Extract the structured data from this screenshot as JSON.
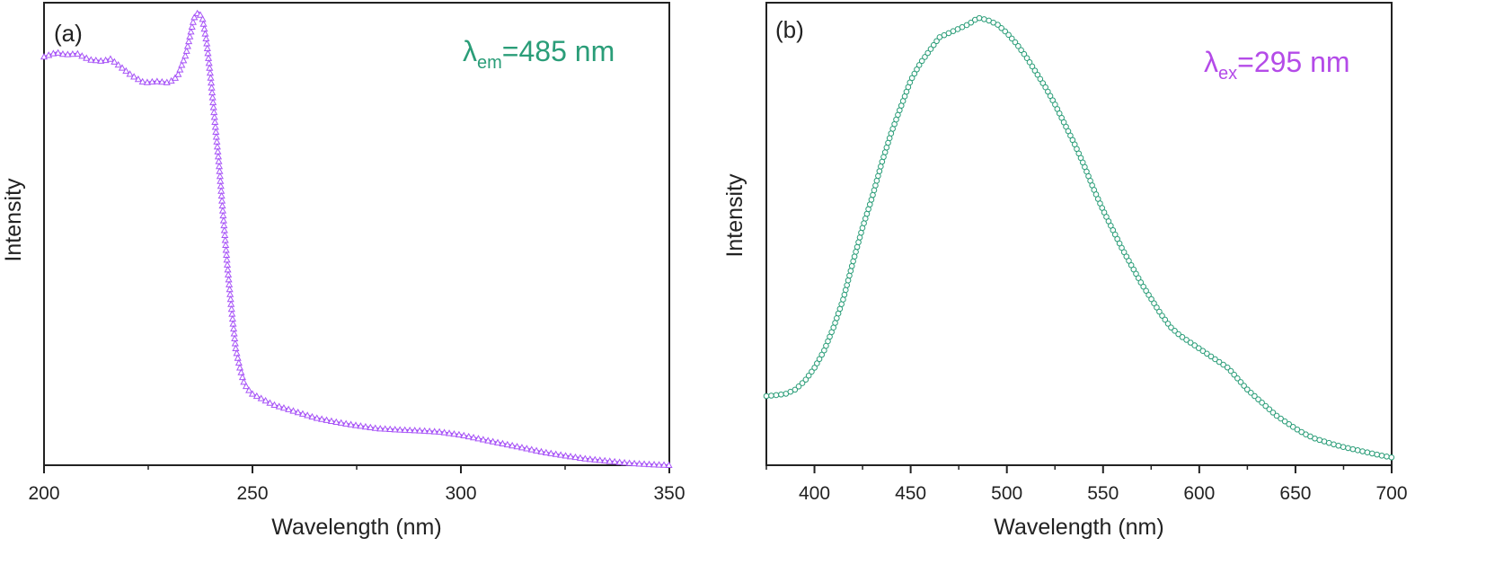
{
  "chart_data": [
    {
      "panel": "(a)",
      "type": "line",
      "xlabel": "Wavelength (nm)",
      "ylabel": "Intensity",
      "xlim": [
        200,
        350
      ],
      "ylim": [
        0,
        1.07
      ],
      "xticks": [
        200,
        250,
        300,
        350
      ],
      "y_tick_labels": false,
      "annotation": {
        "symbol": "λ",
        "subscript": "em",
        "text": "=485 nm"
      },
      "series": [
        {
          "marker": "triangle-open",
          "color": "#A855F7",
          "x": [
            200,
            203,
            205,
            208,
            211,
            214,
            216,
            218,
            221,
            224,
            227,
            230,
            232,
            234,
            236,
            237,
            238,
            239,
            240,
            241,
            242,
            243,
            244,
            245,
            246,
            247,
            248,
            249,
            250,
            252,
            255,
            260,
            265,
            270,
            275,
            280,
            285,
            290,
            295,
            300,
            305,
            310,
            315,
            320,
            325,
            330,
            335,
            340,
            345,
            350
          ],
          "y": [
            0.945,
            0.955,
            0.95,
            0.952,
            0.938,
            0.935,
            0.94,
            0.925,
            0.902,
            0.885,
            0.888,
            0.885,
            0.9,
            0.95,
            1.035,
            1.048,
            1.035,
            0.98,
            0.895,
            0.795,
            0.695,
            0.575,
            0.46,
            0.36,
            0.27,
            0.225,
            0.19,
            0.175,
            0.165,
            0.155,
            0.14,
            0.125,
            0.11,
            0.1,
            0.092,
            0.085,
            0.082,
            0.08,
            0.077,
            0.07,
            0.06,
            0.05,
            0.04,
            0.03,
            0.022,
            0.015,
            0.01,
            0.005,
            0.002,
            0.0
          ]
        }
      ]
    },
    {
      "panel": "(b)",
      "type": "line",
      "xlabel": "Wavelength (nm)",
      "ylabel": "Intensity",
      "xlim": [
        375,
        700
      ],
      "ylim": [
        0,
        1.07
      ],
      "xticks": [
        400,
        450,
        500,
        550,
        600,
        650,
        700
      ],
      "y_tick_labels": false,
      "annotation": {
        "symbol": "λ",
        "subscript": "ex",
        "text": "=295 nm"
      },
      "series": [
        {
          "marker": "circle-open",
          "color": "#2A9D78",
          "x": [
            375,
            380,
            385,
            390,
            395,
            400,
            405,
            410,
            415,
            420,
            425,
            430,
            435,
            440,
            445,
            450,
            455,
            460,
            465,
            470,
            475,
            480,
            485,
            490,
            495,
            500,
            505,
            510,
            515,
            520,
            525,
            530,
            535,
            540,
            545,
            550,
            555,
            560,
            565,
            570,
            575,
            580,
            585,
            590,
            595,
            600,
            605,
            610,
            615,
            620,
            625,
            630,
            635,
            640,
            645,
            650,
            655,
            660,
            665,
            670,
            675,
            680,
            685,
            690,
            695,
            700
          ],
          "y": [
            0.16,
            0.162,
            0.165,
            0.175,
            0.195,
            0.225,
            0.265,
            0.32,
            0.385,
            0.47,
            0.55,
            0.62,
            0.7,
            0.77,
            0.83,
            0.89,
            0.93,
            0.96,
            0.99,
            1.0,
            1.01,
            1.02,
            1.035,
            1.03,
            1.02,
            1.0,
            0.975,
            0.945,
            0.91,
            0.875,
            0.835,
            0.79,
            0.745,
            0.695,
            0.64,
            0.59,
            0.545,
            0.5,
            0.46,
            0.42,
            0.385,
            0.35,
            0.32,
            0.3,
            0.285,
            0.27,
            0.255,
            0.24,
            0.225,
            0.2,
            0.175,
            0.155,
            0.135,
            0.115,
            0.1,
            0.085,
            0.072,
            0.062,
            0.055,
            0.048,
            0.042,
            0.037,
            0.032,
            0.027,
            0.022,
            0.018
          ]
        }
      ]
    }
  ]
}
